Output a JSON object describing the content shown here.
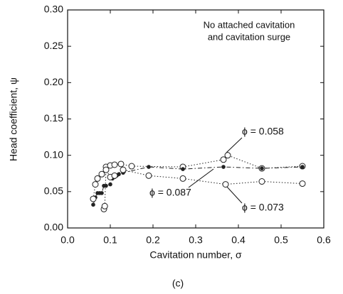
{
  "chart_data": {
    "type": "line",
    "annotation": [
      "No attached cavitation",
      "and cavitation surge"
    ],
    "xlabel": "Cavitation number, σ",
    "ylabel": "Head coefficient, ψ",
    "caption": "(c)",
    "xlim": [
      0,
      0.6
    ],
    "xticks": [
      {
        "value": 0,
        "label": "0.0"
      },
      0.1,
      0.2,
      0.3,
      0.4,
      0.5,
      0.6
    ],
    "ylim": [
      0,
      0.3
    ],
    "yticks": [
      {
        "value": 0,
        "label": "0.00"
      },
      0.05,
      {
        "value": 0.1,
        "label": "0.10"
      },
      0.15,
      {
        "value": 0.2,
        "label": "0.20"
      },
      0.25,
      {
        "value": 0.3,
        "label": "0.30"
      }
    ],
    "series": [
      {
        "name": "ϕ = 0.058",
        "color": "#222222",
        "marker": "open",
        "line_style": "dotted",
        "x": [
          0.085,
          0.087,
          0.09,
          0.1,
          0.11,
          0.125,
          0.15,
          0.27,
          0.365,
          0.375,
          0.455,
          0.55
        ],
        "values": [
          0.026,
          0.03,
          0.084,
          0.086,
          0.087,
          0.088,
          0.085,
          0.084,
          0.094,
          0.1,
          0.082,
          0.085
        ]
      },
      {
        "name": "ϕ = 0.087",
        "color": "#222222",
        "marker": "filled",
        "line_style": "dashdot",
        "x": [
          0.06,
          0.065,
          0.07,
          0.075,
          0.08,
          0.085,
          0.09,
          0.1,
          0.105,
          0.11,
          0.115,
          0.12,
          0.13,
          0.19,
          0.27,
          0.365,
          0.455,
          0.55
        ],
        "values": [
          0.032,
          0.042,
          0.048,
          0.048,
          0.048,
          0.058,
          0.058,
          0.06,
          0.068,
          0.07,
          0.072,
          0.074,
          0.076,
          0.084,
          0.081,
          0.084,
          0.082,
          0.084
        ]
      },
      {
        "name": "ϕ = 0.073",
        "color": "#222222",
        "marker": "open",
        "line_style": "dotted",
        "x": [
          0.06,
          0.065,
          0.07,
          0.08,
          0.09,
          0.1,
          0.11,
          0.13,
          0.19,
          0.27,
          0.37,
          0.455,
          0.55
        ],
        "values": [
          0.04,
          0.06,
          0.068,
          0.074,
          0.08,
          0.07,
          0.072,
          0.08,
          0.072,
          0.068,
          0.06,
          0.064,
          0.061
        ]
      }
    ]
  }
}
